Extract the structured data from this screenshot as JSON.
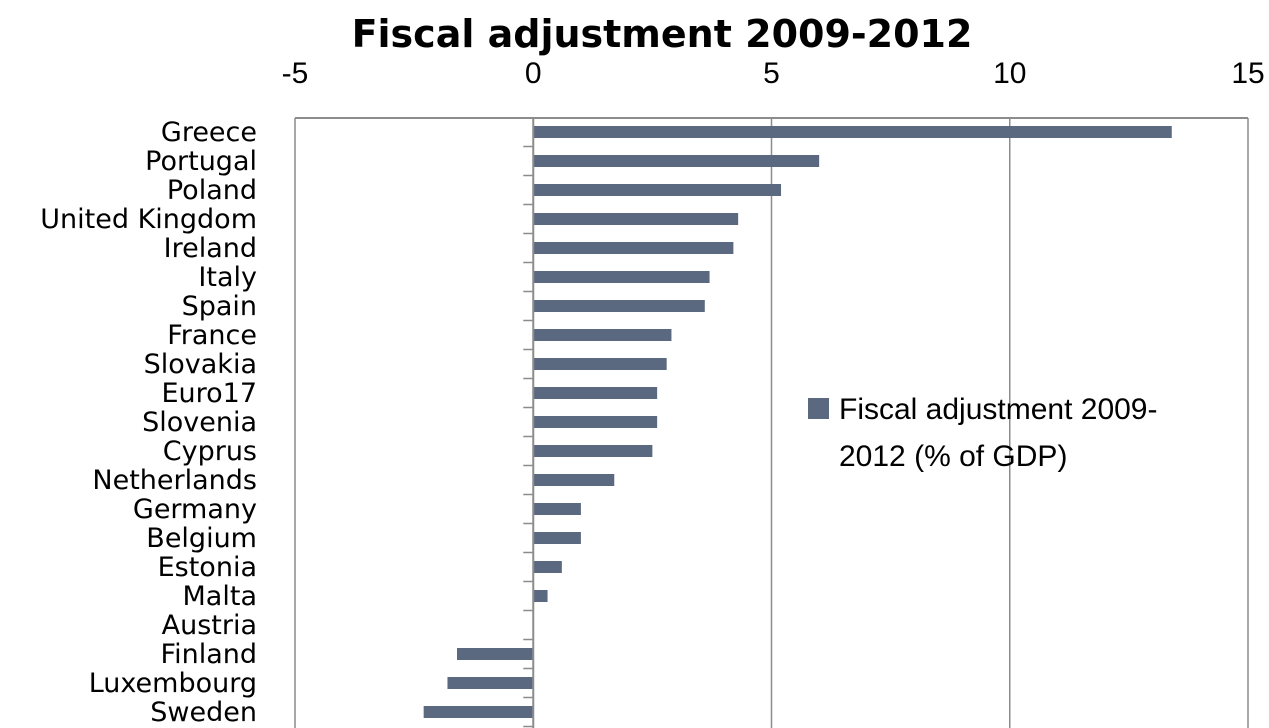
{
  "chart_data": {
    "type": "bar",
    "orientation": "horizontal",
    "title": "Fiscal adjustment 2009-2012",
    "xlabel": "",
    "ylabel": "",
    "xlim": [
      -5,
      15
    ],
    "x_ticks": [
      "-5",
      "0",
      "5",
      "10",
      "15"
    ],
    "x_axis_position": "top",
    "grid": true,
    "legend_position": "right",
    "bar_color": "#5a6880",
    "categories": [
      "Greece",
      "Portugal",
      "Poland",
      "United Kingdom",
      "Ireland",
      "Italy",
      "Spain",
      "France",
      "Slovakia",
      "Euro17",
      "Slovenia",
      "Cyprus",
      "Netherlands",
      "Germany",
      "Belgium",
      "Estonia",
      "Malta",
      "Austria",
      "Finland",
      "Luxembourg",
      "Sweden"
    ],
    "series": [
      {
        "name": "Fiscal adjustment 2009-2012 (% of GDP)",
        "legend_lines": [
          "Fiscal adjustment 2009-",
          "2012 (% of GDP)"
        ],
        "values": [
          13.4,
          6.0,
          5.2,
          4.3,
          4.2,
          3.7,
          3.6,
          2.9,
          2.8,
          2.6,
          2.6,
          2.5,
          1.7,
          1.0,
          1.0,
          0.6,
          0.3,
          0.0,
          -1.6,
          -1.8,
          -2.3
        ]
      }
    ]
  }
}
